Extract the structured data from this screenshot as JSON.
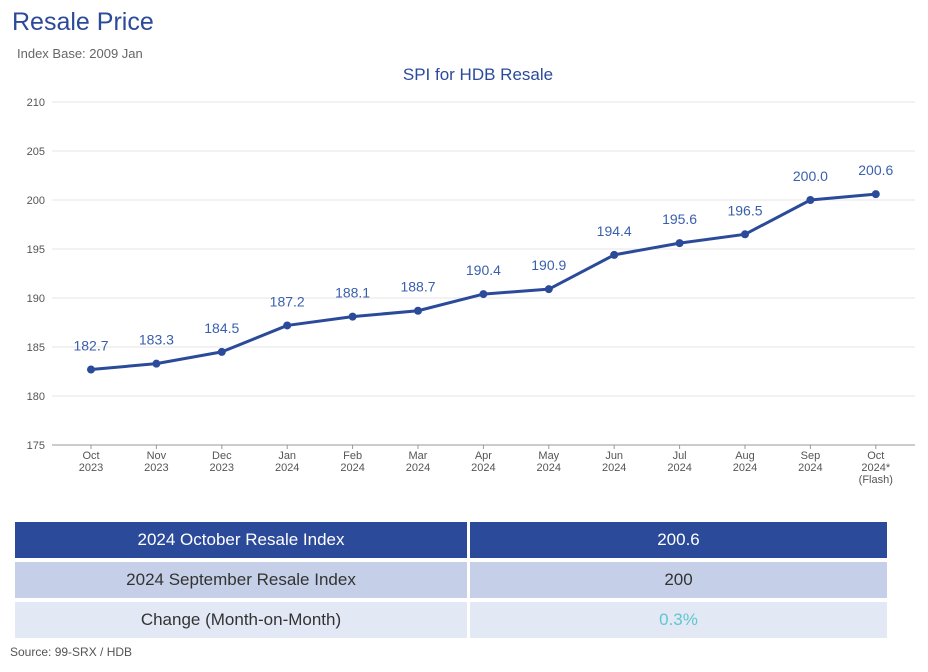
{
  "header": {
    "title": "Resale Price",
    "subtitle": "Index Base: 2009 Jan"
  },
  "chart_data": {
    "type": "line",
    "title": "SPI for HDB Resale",
    "xlabel": "",
    "ylabel": "",
    "ylim": [
      175,
      210
    ],
    "yticks": [
      175,
      180,
      185,
      190,
      195,
      200,
      205,
      210
    ],
    "grid": true,
    "categories": [
      [
        "Oct",
        "2023"
      ],
      [
        "Nov",
        "2023"
      ],
      [
        "Dec",
        "2023"
      ],
      [
        "Jan",
        "2024"
      ],
      [
        "Feb",
        "2024"
      ],
      [
        "Mar",
        "2024"
      ],
      [
        "Apr",
        "2024"
      ],
      [
        "May",
        "2024"
      ],
      [
        "Jun",
        "2024"
      ],
      [
        "Jul",
        "2024"
      ],
      [
        "Aug",
        "2024"
      ],
      [
        "Sep",
        "2024"
      ],
      [
        "Oct",
        "2024*",
        "(Flash)"
      ]
    ],
    "series": [
      {
        "values": [
          182.7,
          183.3,
          184.5,
          187.2,
          188.1,
          188.7,
          190.4,
          190.9,
          194.4,
          195.6,
          196.5,
          200.0,
          200.6
        ],
        "labels": [
          "182.7",
          "183.3",
          "184.5",
          "187.2",
          "188.1",
          "188.7",
          "190.4",
          "190.9",
          "194.4",
          "195.6",
          "196.5",
          "200.0",
          "200.6"
        ],
        "color": "#2b4a9a"
      }
    ]
  },
  "summary": {
    "rows": [
      {
        "label": "2024 October Resale Index",
        "value": "200.6"
      },
      {
        "label": "2024 September Resale Index",
        "value": "200"
      },
      {
        "label": "Change (Month-on-Month)",
        "value": "0.3%"
      }
    ]
  },
  "source": "Source: 99-SRX / HDB",
  "colors": {
    "accent": "#2b4a9a",
    "label_blue": "#3a5fae",
    "row_mid": "#c5cfe7",
    "row_light": "#e3e8f5",
    "positive_change": "#5fc6d1"
  }
}
